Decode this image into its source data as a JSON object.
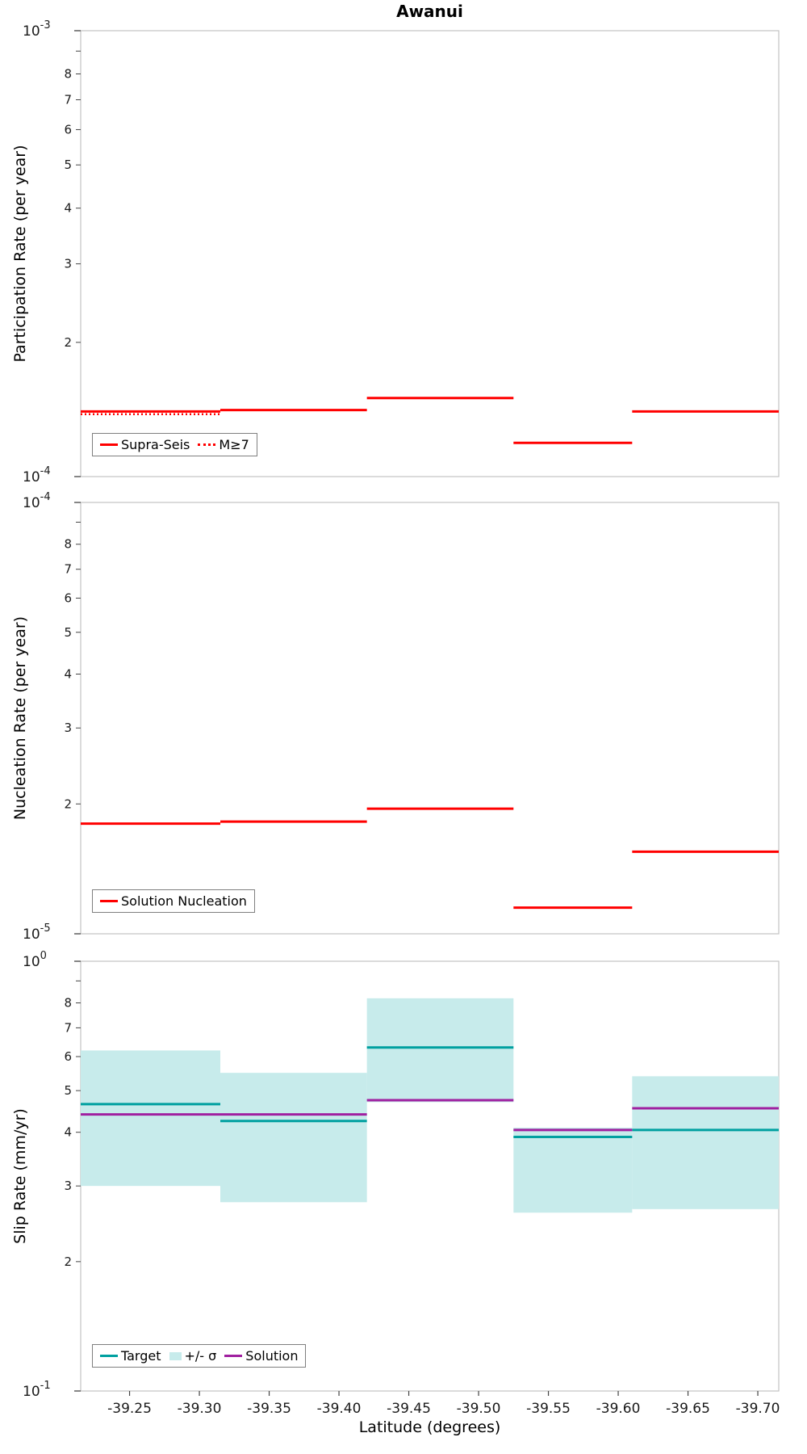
{
  "title": "Awanui",
  "x_axis": {
    "label": "Latitude (degrees)",
    "range": [
      -39.215,
      -39.715
    ],
    "ticks": [
      {
        "value": -39.25,
        "label": "-39.25"
      },
      {
        "value": -39.3,
        "label": "-39.30"
      },
      {
        "value": -39.35,
        "label": "-39.35"
      },
      {
        "value": -39.4,
        "label": "-39.40"
      },
      {
        "value": -39.45,
        "label": "-39.45"
      },
      {
        "value": -39.5,
        "label": "-39.50"
      },
      {
        "value": -39.55,
        "label": "-39.55"
      },
      {
        "value": -39.6,
        "label": "-39.60"
      },
      {
        "value": -39.65,
        "label": "-39.65"
      },
      {
        "value": -39.7,
        "label": "-39.70"
      }
    ]
  },
  "colors": {
    "red": "#ff0000",
    "teal": "#00a0a0",
    "purple": "#a020a0",
    "band": "#c7ebeb",
    "axis": "#c3c3c3",
    "tick": "#444444"
  },
  "chart_data": [
    {
      "type": "step-line",
      "ylabel": "Participation Rate (per year)",
      "ylim": [
        0.0001,
        0.001
      ],
      "y_scale": "log",
      "minor_tick_labels": [
        "8",
        "7",
        "6",
        "5",
        "4",
        "3",
        "2"
      ],
      "x_edges": [
        -39.215,
        -39.315,
        -39.42,
        -39.525,
        -39.61,
        -39.715
      ],
      "series": [
        {
          "name": "Supra-Seis",
          "color": "#ff0000",
          "style": "solid",
          "values": [
            0.00014,
            0.000141,
            0.00015,
            0.000119,
            0.00014
          ]
        },
        {
          "name": "M≥7",
          "color": "#ff0000",
          "style": "dotted",
          "values": [
            0.000138,
            null,
            null,
            null,
            null
          ]
        }
      ]
    },
    {
      "type": "step-line",
      "ylabel": "Nucleation Rate (per year)",
      "ylim": [
        1e-05,
        0.0001
      ],
      "y_scale": "log",
      "minor_tick_labels": [
        "8",
        "7",
        "6",
        "5",
        "4",
        "3",
        "2"
      ],
      "x_edges": [
        -39.215,
        -39.315,
        -39.42,
        -39.525,
        -39.61,
        -39.715
      ],
      "series": [
        {
          "name": "Solution Nucleation",
          "color": "#ff0000",
          "style": "solid",
          "values": [
            1.8e-05,
            1.82e-05,
            1.95e-05,
            1.15e-05,
            1.55e-05
          ]
        }
      ]
    },
    {
      "type": "step-line-band",
      "ylabel": "Slip Rate (mm/yr)",
      "ylim": [
        0.1,
        1.0
      ],
      "y_scale": "log",
      "minor_tick_labels": [
        "8",
        "7",
        "6",
        "5",
        "4",
        "3",
        "2"
      ],
      "x_edges": [
        -39.215,
        -39.315,
        -39.42,
        -39.525,
        -39.61,
        -39.715
      ],
      "band": {
        "name": "+/- σ",
        "color": "#c7ebeb",
        "lo": [
          0.3,
          0.275,
          0.47,
          0.26,
          0.265
        ],
        "hi": [
          0.62,
          0.55,
          0.82,
          0.41,
          0.54
        ]
      },
      "series": [
        {
          "name": "Target",
          "color": "#00a0a0",
          "style": "solid",
          "values": [
            0.465,
            0.425,
            0.63,
            0.39,
            0.405
          ]
        },
        {
          "name": "Solution",
          "color": "#a020a0",
          "style": "solid",
          "values": [
            0.44,
            0.44,
            0.475,
            0.405,
            0.455
          ]
        }
      ]
    }
  ]
}
